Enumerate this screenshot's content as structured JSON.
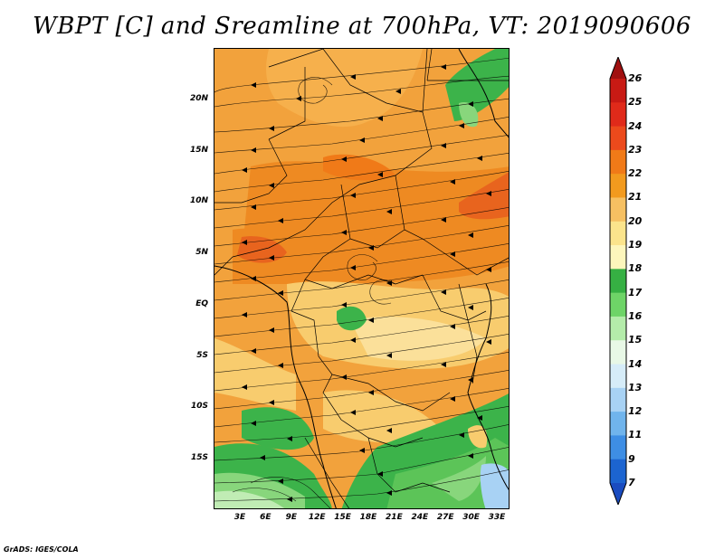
{
  "title": "WBPT [C] and Sreamline at 700hPa, VT: 2019090606",
  "footer": "GrADS: IGES/COLA",
  "map": {
    "variable": "WBPT [C]",
    "overlay": "Streamline",
    "level": "700hPa",
    "valid_time": "2019090606",
    "lat_labels": [
      "20N",
      "15N",
      "10N",
      "5N",
      "EQ",
      "5S",
      "10S",
      "15S"
    ],
    "lon_labels": [
      "3E",
      "6E",
      "9E",
      "12E",
      "15E",
      "18E",
      "21E",
      "24E",
      "27E",
      "30E",
      "33E"
    ]
  },
  "colorbar": {
    "labels": [
      "26",
      "25",
      "24",
      "23",
      "22",
      "21",
      "20",
      "19",
      "18",
      "17",
      "16",
      "15",
      "14",
      "13",
      "12",
      "11",
      "9",
      "7"
    ],
    "colors": [
      "#a01010",
      "#c81a14",
      "#e02a1a",
      "#ec4a1c",
      "#f07a18",
      "#f29a1e",
      "#f6c062",
      "#fbe48c",
      "#fdf6bc",
      "#36b043",
      "#6ed467",
      "#b4ecaa",
      "#e8f8e6",
      "#d6ecf8",
      "#a8d2f4",
      "#70b4ec",
      "#3e8ee4",
      "#1c64d0",
      "#1a4cc0"
    ]
  },
  "colors": {
    "warm_orange": "#f2a23c",
    "deep_orange": "#ee8a22",
    "yellow": "#f8cc6e",
    "light_yellow": "#fbe09a",
    "green": "#3cb34a",
    "light_green": "#88d67c",
    "pale_green": "#c0ecb4",
    "light_blue": "#a8d2f4"
  }
}
